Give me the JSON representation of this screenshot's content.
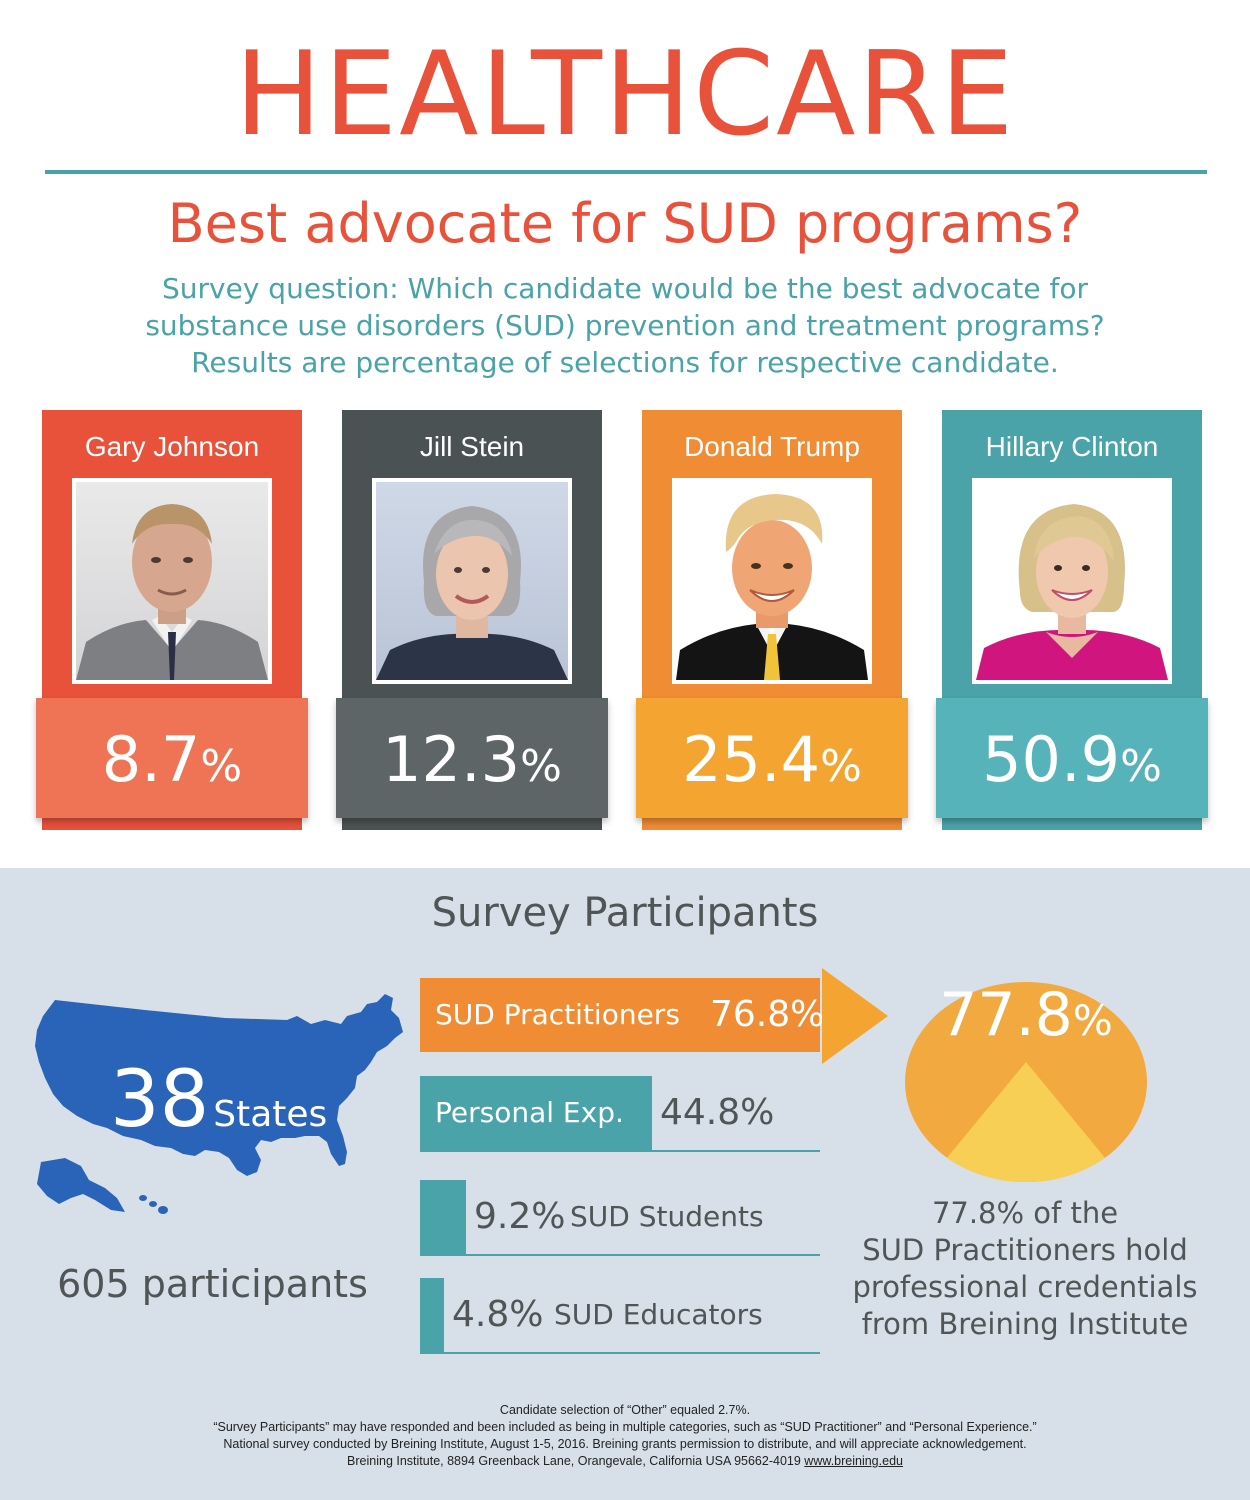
{
  "header": {
    "title": "HEALTHCARE",
    "subtitle": "Best advocate for SUD programs?",
    "question_lines": [
      "Survey question: Which candidate would be the best advocate for",
      "substance use disorders (SUD) prevention and treatment programs?",
      "Results are percentage of selections for respective candidate."
    ]
  },
  "candidates": [
    {
      "name": "Gary Johnson",
      "value": "8.7",
      "unit": "%",
      "color": "#e8513a",
      "box_color": "#ee7455",
      "photo_icon": "gary-johnson-photo"
    },
    {
      "name": "Jill Stein",
      "value": "12.3",
      "unit": "%",
      "color": "#4b5253",
      "box_color": "#5e6566",
      "photo_icon": "jill-stein-photo"
    },
    {
      "name": "Donald Trump",
      "value": "25.4",
      "unit": "%",
      "color": "#ef8c34",
      "box_color": "#f3a431",
      "photo_icon": "donald-trump-photo"
    },
    {
      "name": "Hillary Clinton",
      "value": "50.9",
      "unit": "%",
      "color": "#4aa3a9",
      "box_color": "#56b3ba",
      "photo_icon": "hillary-clinton-photo"
    }
  ],
  "participants": {
    "title": "Survey Participants",
    "states_count": "38",
    "states_label": "States",
    "participant_count": "605 participants",
    "map_icon": "usa-map-icon",
    "bars": [
      {
        "label": "SUD Practitioners",
        "value": "76.8%",
        "fraction": 1.0,
        "color": "#ef8c34"
      },
      {
        "label": "Personal Exp.",
        "value": "44.8%",
        "fraction": 0.58,
        "color": "#4aa3a9"
      },
      {
        "label": "SUD Students",
        "value": "9.2%",
        "fraction": 0.115,
        "color": "#4aa3a9"
      },
      {
        "label": "SUD Educators",
        "value": "4.8%",
        "fraction": 0.06,
        "color": "#4aa3a9"
      }
    ],
    "credential_value": "77.8",
    "credential_unit": "%",
    "credential_lines": [
      "77.8% of the",
      "SUD Practitioners hold",
      "professional credentials",
      "from Breining Institute"
    ]
  },
  "footnotes": [
    "Candidate selection of “Other” equaled 2.7%.",
    "“Survey Participants” may have responded and been included as being in multiple categories, such as “SUD Practitioner” and “Personal Experience.”",
    "National survey conducted by Breining Institute, August 1-5, 2016. Breining grants permission to distribute, and will appreciate acknowledgement.",
    "Breining Institute, 8894 Greenback Lane, Orangevale, California USA 95662-4019"
  ],
  "footer_link": "www.breining.edu"
}
